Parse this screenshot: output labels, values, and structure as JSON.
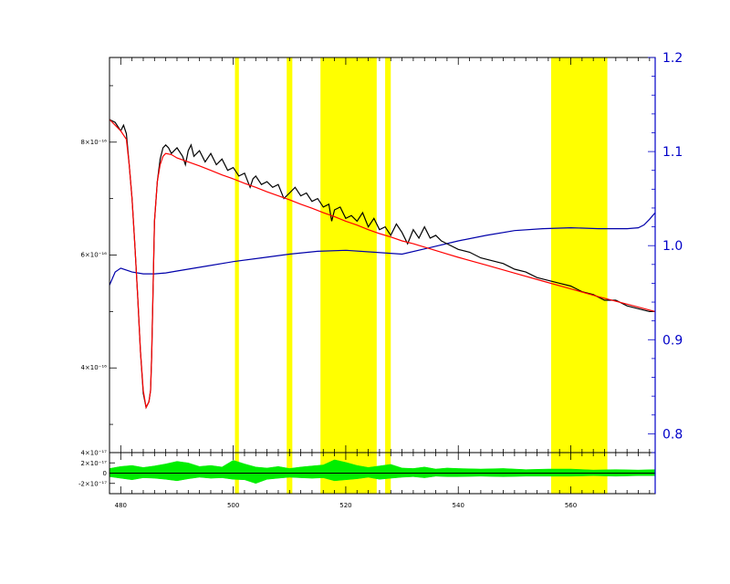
{
  "colors": {
    "spectrum": "#000000",
    "model": "#ff0000",
    "continuum": "#0000aa",
    "residuals": "#00ee00",
    "masks": "#ffff00",
    "right_axis": "#0000c8"
  },
  "chart_data": [
    {
      "type": "line",
      "panel": "main",
      "title": "",
      "xlabel": "",
      "ylabel": "",
      "xlim": [
        478,
        575
      ],
      "ylim": [
        2.5e-16,
        9.5e-16
      ],
      "grid": false,
      "legend": "none",
      "x_ticks": [
        480,
        500,
        520,
        540,
        560
      ],
      "y_ticks": [
        {
          "value": 4e-16,
          "label": "4×10⁻¹⁶"
        },
        {
          "value": 6e-16,
          "label": "6×10⁻¹⁶"
        },
        {
          "value": 8e-16,
          "label": "8×10⁻¹⁶"
        }
      ],
      "right_axis": {
        "ylim": [
          0.78,
          1.2
        ],
        "ticks": [
          "0.8",
          "0.9",
          "1.0",
          "1.1",
          "1.2"
        ]
      },
      "masks": [
        [
          500.3,
          501.0
        ],
        [
          509.5,
          510.5
        ],
        [
          515.5,
          525.5
        ],
        [
          527.0,
          528.0
        ],
        [
          556.5,
          566.5
        ]
      ],
      "series": [
        {
          "role": "observed",
          "x": [
            478,
            479,
            480,
            480.5,
            481,
            481.5,
            482,
            482.5,
            483,
            483.5,
            484,
            484.5,
            485,
            485.3,
            485.5,
            485.7,
            486,
            486.5,
            487,
            487.5,
            488,
            488.5,
            489,
            490,
            491,
            491.5,
            492,
            492.5,
            493,
            494,
            495,
            496,
            497,
            498,
            499,
            500,
            501,
            502,
            503,
            503.5,
            504,
            505,
            506,
            507,
            508,
            509,
            510,
            511,
            512,
            513,
            514,
            515,
            516,
            517,
            517.5,
            518,
            519,
            520,
            521,
            522,
            523,
            524,
            525,
            526,
            527,
            528,
            529,
            530,
            531,
            532,
            533,
            534,
            535,
            536,
            537,
            538,
            540,
            542,
            544,
            546,
            548,
            550,
            552,
            554,
            556,
            558,
            560,
            562,
            564,
            566,
            568,
            570,
            572,
            574,
            575
          ],
          "y": [
            8.4e-16,
            8.35e-16,
            8.2e-16,
            8.3e-16,
            8.15e-16,
            7.6e-16,
            7e-16,
            6.2e-16,
            5.3e-16,
            4.3e-16,
            3.55e-16,
            3.3e-16,
            3.4e-16,
            3.6e-16,
            4.2e-16,
            5.2e-16,
            6.6e-16,
            7.3e-16,
            7.7e-16,
            7.9e-16,
            7.95e-16,
            7.9e-16,
            7.8e-16,
            7.9e-16,
            7.75e-16,
            7.6e-16,
            7.85e-16,
            7.95e-16,
            7.75e-16,
            7.85e-16,
            7.65e-16,
            7.8e-16,
            7.6e-16,
            7.7e-16,
            7.5e-16,
            7.55e-16,
            7.4e-16,
            7.45e-16,
            7.2e-16,
            7.35e-16,
            7.4e-16,
            7.25e-16,
            7.3e-16,
            7.2e-16,
            7.25e-16,
            7e-16,
            7.1e-16,
            7.2e-16,
            7.05e-16,
            7.1e-16,
            6.95e-16,
            7e-16,
            6.85e-16,
            6.9e-16,
            6.6e-16,
            6.8e-16,
            6.85e-16,
            6.65e-16,
            6.7e-16,
            6.6e-16,
            6.75e-16,
            6.5e-16,
            6.65e-16,
            6.45e-16,
            6.5e-16,
            6.35e-16,
            6.55e-16,
            6.4e-16,
            6.2e-16,
            6.45e-16,
            6.3e-16,
            6.5e-16,
            6.3e-16,
            6.35e-16,
            6.25e-16,
            6.2e-16,
            6.1e-16,
            6.05e-16,
            5.95e-16,
            5.9e-16,
            5.85e-16,
            5.75e-16,
            5.7e-16,
            5.6e-16,
            5.55e-16,
            5.5e-16,
            5.45e-16,
            5.35e-16,
            5.3e-16,
            5.2e-16,
            5.2e-16,
            5.1e-16,
            5.05e-16,
            5e-16,
            5e-16
          ]
        },
        {
          "role": "model",
          "x": [
            478,
            479,
            480,
            481,
            481.5,
            482,
            482.5,
            483,
            483.5,
            484,
            484.5,
            485,
            485.3,
            485.5,
            485.7,
            486,
            486.5,
            487,
            487.5,
            488,
            489,
            490,
            492,
            494,
            496,
            498,
            500,
            502,
            504,
            506,
            508,
            510,
            512,
            514,
            516,
            518,
            520,
            522,
            524,
            526,
            528,
            530,
            532,
            534,
            536,
            538,
            540,
            545,
            550,
            555,
            560,
            565,
            570,
            575
          ],
          "y": [
            8.4e-16,
            8.3e-16,
            8.2e-16,
            8.05e-16,
            7.6e-16,
            7e-16,
            6.2e-16,
            5.3e-16,
            4.3e-16,
            3.6e-16,
            3.3e-16,
            3.4e-16,
            3.6e-16,
            4.2e-16,
            5.2e-16,
            6.6e-16,
            7.3e-16,
            7.6e-16,
            7.75e-16,
            7.8e-16,
            7.78e-16,
            7.72e-16,
            7.65e-16,
            7.58e-16,
            7.5e-16,
            7.42e-16,
            7.35e-16,
            7.27e-16,
            7.2e-16,
            7.12e-16,
            7.05e-16,
            6.98e-16,
            6.9e-16,
            6.83e-16,
            6.75e-16,
            6.68e-16,
            6.6e-16,
            6.53e-16,
            6.45e-16,
            6.38e-16,
            6.32e-16,
            6.25e-16,
            6.2e-16,
            6.14e-16,
            6.08e-16,
            6.02e-16,
            5.96e-16,
            5.82e-16,
            5.68e-16,
            5.54e-16,
            5.4e-16,
            5.26e-16,
            5.13e-16,
            5e-16
          ]
        },
        {
          "role": "continuum",
          "axis": "right",
          "x": [
            478,
            479,
            480,
            482,
            484,
            486,
            488,
            490,
            495,
            500,
            505,
            510,
            515,
            520,
            525,
            530,
            535,
            540,
            545,
            550,
            555,
            560,
            565,
            570,
            572,
            573,
            574,
            575
          ],
          "y": [
            0.958,
            0.972,
            0.976,
            0.972,
            0.97,
            0.97,
            0.971,
            0.973,
            0.978,
            0.983,
            0.987,
            0.991,
            0.994,
            0.995,
            0.993,
            0.991,
            0.998,
            1.005,
            1.011,
            1.016,
            1.018,
            1.019,
            1.018,
            1.018,
            1.019,
            1.022,
            1.028,
            1.035
          ]
        }
      ]
    },
    {
      "type": "area",
      "panel": "residuals",
      "title": "",
      "xlabel": "",
      "ylabel": "",
      "xlim": [
        478,
        575
      ],
      "ylim": [
        -4e-17,
        4e-17
      ],
      "grid": false,
      "legend": "none",
      "x_ticks": [
        {
          "value": 480,
          "label": "480"
        },
        {
          "value": 500,
          "label": "500"
        },
        {
          "value": 520,
          "label": "520"
        },
        {
          "value": 540,
          "label": "540"
        },
        {
          "value": 560,
          "label": "560"
        }
      ],
      "y_ticks": [
        {
          "value": 4e-17,
          "label": "4×10⁻¹⁷"
        },
        {
          "value": 2e-17,
          "label": "2×10⁻¹⁷"
        },
        {
          "value": 0,
          "label": "0"
        },
        {
          "value": -2e-17,
          "label": "-2×10⁻¹⁷"
        }
      ],
      "series": [
        {
          "role": "residual_envelope",
          "x": [
            478,
            480,
            482,
            484,
            486,
            488,
            490,
            492,
            494,
            496,
            498,
            500,
            502,
            504,
            506,
            508,
            510,
            512,
            514,
            516,
            518,
            520,
            522,
            524,
            526,
            528,
            530,
            532,
            534,
            536,
            538,
            540,
            544,
            548,
            552,
            556,
            560,
            564,
            568,
            572,
            575
          ],
          "upper": [
            9e-18,
            1.3e-17,
            1.5e-17,
            1.1e-17,
            1.4e-17,
            1.8e-17,
            2.3e-17,
            2e-17,
            1.3e-17,
            1.5e-17,
            1.2e-17,
            2.5e-17,
            1.8e-17,
            1.2e-17,
            1e-17,
            1.3e-17,
            9e-18,
            1.2e-17,
            1.4e-17,
            1.6e-17,
            2.6e-17,
            2.1e-17,
            1.5e-17,
            1.1e-17,
            1.4e-17,
            1.7e-17,
            1e-17,
            9e-18,
            1.2e-17,
            8e-18,
            1e-17,
            9e-18,
            8e-18,
            9e-18,
            7e-18,
            8e-18,
            8e-18,
            6e-18,
            7e-18,
            6e-18,
            7e-18
          ],
          "lower": [
            -7e-18,
            -1e-17,
            -1.3e-17,
            -9e-18,
            -1e-17,
            -1.2e-17,
            -1.5e-17,
            -1.1e-17,
            -8e-18,
            -1e-17,
            -9e-18,
            -1.2e-17,
            -1.3e-17,
            -2e-17,
            -1.2e-17,
            -1e-17,
            -8e-18,
            -9e-18,
            -1e-17,
            -9e-18,
            -1.5e-17,
            -1.3e-17,
            -1.1e-17,
            -8e-18,
            -1.2e-17,
            -1e-17,
            -8e-18,
            -7e-18,
            -9e-18,
            -6e-18,
            -7e-18,
            -7e-18,
            -6e-18,
            -7e-18,
            -6e-18,
            -6e-18,
            -6e-18,
            -5e-18,
            -6e-18,
            -5e-18,
            -5e-18
          ]
        }
      ]
    }
  ]
}
